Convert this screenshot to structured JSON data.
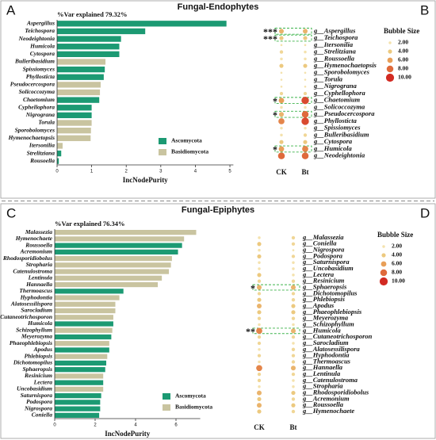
{
  "chart_data": [
    {
      "type": "barh",
      "panel_label": "A",
      "title": "Fungal-Endophytes",
      "subtitle": "%Var explained 79.32%",
      "xlabel": "IncNodePurity",
      "categories": [
        "Aspergillus",
        "Teichospora",
        "Neodeightonia",
        "Humicola",
        "Cytospora",
        "Bulleribasidium",
        "Spissiomyces",
        "Phyllosticta",
        "Pseudocercospora",
        "Solicoccozyma",
        "Chaetomium",
        "Cyphellophora",
        "Nigrograna",
        "Torula",
        "Sporobolomyces",
        "Hymenochaetopsis",
        "Itersonilia",
        "Strelitziana",
        "Rousoella"
      ],
      "series": [
        {
          "name": "Ascomycota",
          "color": "#1c9a73",
          "values": [
            4.9,
            2.55,
            1.85,
            1.8,
            1.8,
            null,
            1.38,
            1.35,
            null,
            null,
            1.22,
            1.0,
            1.0,
            null,
            null,
            null,
            null,
            0.12,
            0.05
          ]
        },
        {
          "name": "Basidiomycota",
          "color": "#c9c4a0",
          "values": [
            null,
            null,
            null,
            null,
            null,
            1.4,
            null,
            null,
            1.26,
            1.24,
            null,
            null,
            null,
            1.0,
            0.98,
            0.97,
            0.16,
            null,
            null
          ]
        }
      ],
      "xlim": [
        0,
        5.1
      ],
      "xticks": [
        0,
        1,
        2,
        3,
        4,
        5
      ]
    },
    {
      "type": "bubble",
      "panel_label": "B",
      "categories": [
        "g__Aspergillus",
        "g__Teichospora",
        "g__Itersonilia",
        "g__Strelitziana",
        "g__Roussoella",
        "g__Hymenochaetopsis",
        "g__Sporobolomyces",
        "g__Torula",
        "g__Nigrograna",
        "g__Cyphellophora",
        "g__Chaetomium",
        "g__Solicoccozyma",
        "g__Pseudocercospora",
        "g__Phyllosticta",
        "g__Spissiomyces",
        "g__Bulleribasidium",
        "g__Cytospora",
        "g__Humicola",
        "g__Neodeightonia"
      ],
      "series": [
        {
          "name": "CK",
          "values": [
            5,
            4,
            1,
            3,
            2,
            4,
            1,
            1,
            1,
            3,
            6,
            2,
            5,
            7,
            2,
            2,
            4,
            6,
            8
          ]
        },
        {
          "name": "Bt",
          "values": [
            5,
            4,
            1,
            2,
            2,
            4,
            1,
            1,
            1,
            3,
            9,
            2,
            8,
            9,
            2,
            3,
            4,
            7,
            8
          ]
        }
      ],
      "significance": [
        "***",
        "***",
        null,
        null,
        null,
        null,
        null,
        null,
        null,
        null,
        "*",
        null,
        "*",
        null,
        null,
        null,
        null,
        "*",
        null
      ],
      "size_legend": {
        "title": "Bubble Size",
        "ticks": [
          {
            "value": 2,
            "label": "2.00",
            "color": "#f4e2ad"
          },
          {
            "value": 4,
            "label": "4.00",
            "color": "#ecc97f"
          },
          {
            "value": 6,
            "label": "6.00",
            "color": "#e89f58"
          },
          {
            "value": 8,
            "label": "8.00",
            "color": "#df6a3b"
          },
          {
            "value": 10,
            "label": "10.00",
            "color": "#d22a22"
          }
        ]
      }
    },
    {
      "type": "barh",
      "panel_label": "C",
      "title": "Fungal-Epiphytes",
      "subtitle": "%Var explained 76.34%",
      "xlabel": "IncNodePurity",
      "categories": [
        "Malassezia",
        "Hymenochaete",
        "Roussoella",
        "Acremonium",
        "Rhodosporidiobolus",
        "Stropharia",
        "Catenulostroma",
        "Lentinula",
        "Hannaella",
        "Thermoascus",
        "Hyphodontia",
        "Alatosessilispora",
        "Sarocladium",
        "Cutaneotrichosporon",
        "Humicola",
        "Schizophyllum",
        "Meyerozyma",
        "Phaeophlebiopsis",
        "Apodus",
        "Phlebiopsis",
        "Dichotomopilus",
        "Sphaeropsis",
        "Resinicium",
        "Lectera",
        "Uncobasidium",
        "Saturnispora",
        "Podospora",
        "Nigrospora",
        "Coniella"
      ],
      "series": [
        {
          "name": "Ascomycota",
          "color": "#1c9a73",
          "values": [
            null,
            null,
            6.3,
            6.1,
            null,
            null,
            null,
            null,
            null,
            3.4,
            null,
            null,
            null,
            null,
            2.9,
            null,
            2.8,
            null,
            2.7,
            null,
            2.55,
            2.5,
            null,
            2.4,
            null,
            2.3,
            2.25,
            2.25,
            2.2
          ]
        },
        {
          "name": "Basidiomycota",
          "color": "#c9c4a0",
          "values": [
            7.0,
            6.4,
            null,
            null,
            5.8,
            5.75,
            5.65,
            5.3,
            5.1,
            null,
            3.2,
            3.0,
            3.0,
            2.9,
            null,
            2.85,
            null,
            2.7,
            null,
            2.6,
            null,
            null,
            2.4,
            null,
            2.4,
            null,
            null,
            null,
            null
          ]
        }
      ],
      "xlim": [
        0,
        7.2
      ],
      "xticks": [
        0,
        2,
        4,
        6
      ]
    },
    {
      "type": "bubble",
      "panel_label": "D",
      "categories": [
        "g__Malassezia",
        "g__Coniella",
        "g__Nigrospora",
        "g__Podospora",
        "g__Saturnispora",
        "g__Uncobasidium",
        "g__Lectera",
        "g__Resinicium",
        "g__Sphaeropsis",
        "g__Dichotomopilus",
        "g__Phlebiopsis",
        "g__Apodus",
        "g__Phaeophlebiopsis",
        "g__Meyerozyma",
        "g__Schizophyllum",
        "g__Humicola",
        "g__Cutaneotrichosporon",
        "g__Sarocladium",
        "g__Alatosessilispora",
        "g__Hyphodontia",
        "g__Thermoascus",
        "g__Hannaella",
        "g__Lentinula",
        "g__Catenulostroma",
        "g__Stropharia",
        "g__Rhodosporidiobolus",
        "g__Acremonium",
        "g__Roussoella",
        "g__Hymenochaete"
      ],
      "series": [
        {
          "name": "CK",
          "values": [
            2,
            4,
            2,
            4,
            2,
            2,
            4,
            3,
            5,
            3,
            4,
            5,
            4,
            3,
            2,
            7,
            3,
            3,
            2,
            3,
            2,
            7,
            3,
            3,
            2,
            5,
            4,
            5,
            4
          ]
        },
        {
          "name": "Bt",
          "values": [
            3,
            3,
            1,
            3,
            2,
            2,
            2,
            3,
            5,
            3,
            3,
            4,
            4,
            3,
            2,
            5,
            3,
            2,
            3,
            3,
            3,
            5,
            3,
            2,
            2,
            4,
            3,
            4,
            3
          ]
        }
      ],
      "significance": [
        null,
        null,
        null,
        null,
        null,
        null,
        null,
        null,
        "*",
        null,
        null,
        null,
        null,
        null,
        null,
        "**",
        null,
        null,
        null,
        null,
        null,
        null,
        null,
        null,
        null,
        null,
        null,
        null,
        null
      ],
      "size_legend": {
        "title": "Bubble Size",
        "ticks": [
          {
            "value": 2,
            "label": "2.00",
            "color": "#f4e2ad"
          },
          {
            "value": 4,
            "label": "4.00",
            "color": "#ecc97f"
          },
          {
            "value": 6,
            "label": "6.00",
            "color": "#e89f58"
          },
          {
            "value": 8,
            "label": "8.00",
            "color": "#df6a3b"
          },
          {
            "value": 10,
            "label": "10.00",
            "color": "#d22a22"
          }
        ]
      }
    }
  ]
}
